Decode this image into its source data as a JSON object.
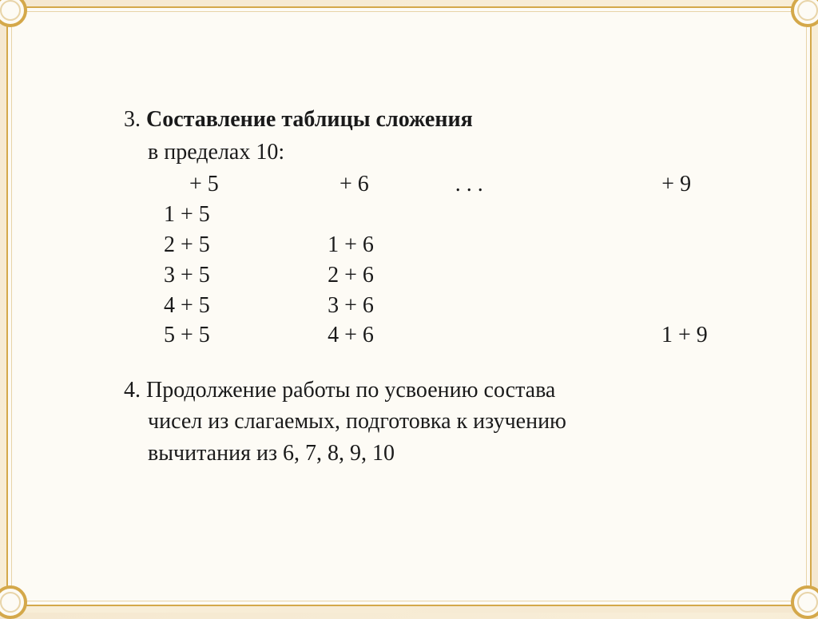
{
  "colors": {
    "background_gradient_start": "#f5e8d0",
    "background_gradient_end": "#f5e8d0",
    "slide_background": "#fdfbf5",
    "border_outer": "#d4a84a",
    "border_inner": "#e8d4a8",
    "text": "#1a1a1a"
  },
  "typography": {
    "font_family": "Times New Roman",
    "body_fontsize": 28,
    "line_height": 1.4
  },
  "item3": {
    "number": "3.",
    "title": "Составление таблицы сложения",
    "subtitle": "в пределах 10:"
  },
  "table": {
    "header": {
      "col1": "+ 5",
      "col2": "+ 6",
      "col3": ".  .  .",
      "col4": "+ 9"
    },
    "rows": [
      {
        "col1": "1 + 5",
        "col2": "",
        "col3": "",
        "col4": ""
      },
      {
        "col1": "2 + 5",
        "col2": "1 + 6",
        "col3": "",
        "col4": ""
      },
      {
        "col1": "3 + 5",
        "col2": "2 + 6",
        "col3": "",
        "col4": ""
      },
      {
        "col1": "4 + 5",
        "col2": "3 + 6",
        "col3": "",
        "col4": ""
      },
      {
        "col1": "5 + 5",
        "col2": "4 + 6",
        "col3": "",
        "col4": "1 + 9"
      }
    ]
  },
  "item4": {
    "number": "4.",
    "line1": "Продолжение работы по усвоению состава",
    "line2": "чисел  из слагаемых, подготовка к изучению",
    "line3": "вычитания из 6, 7, 8, 9, 10"
  }
}
